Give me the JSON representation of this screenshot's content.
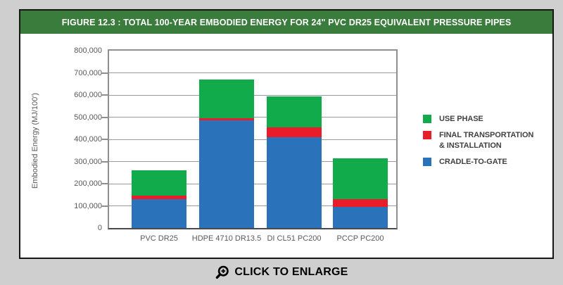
{
  "figure": {
    "title": "FIGURE 12.3 : TOTAL 100-YEAR EMBODIED ENERGY FOR 24\" PVC DR25 EQUIVALENT PRESSURE PIPES"
  },
  "chart_data": {
    "type": "bar",
    "stacked": true,
    "title": "FIGURE 12.3 : TOTAL 100-YEAR EMBODIED ENERGY FOR 24\" PVC DR25 EQUIVALENT PRESSURE PIPES",
    "xlabel": "",
    "ylabel": "Embodied Energy (MJ/100')",
    "ylim": [
      0,
      800000
    ],
    "ytick_step": 100000,
    "ytick_labels": [
      "0",
      "100,000",
      "200,000",
      "300,000",
      "400,000",
      "500,000",
      "600,000",
      "700,000",
      "800,000"
    ],
    "grid": "horizontal",
    "legend_position": "right",
    "categories": [
      "PVC DR25",
      "HDPE 4710 DR13.5",
      "DI CL51 PC200",
      "PCCP PC200"
    ],
    "series": [
      {
        "name": "CRADLE-TO-GATE",
        "color": "#2a72ba",
        "values": [
          130000,
          485000,
          410000,
          95000
        ]
      },
      {
        "name": "FINAL TRANSPORTATION & INSTALLATION",
        "color": "#e91c29",
        "values": [
          15000,
          10000,
          45000,
          35000
        ]
      },
      {
        "name": "USE PHASE",
        "color": "#11ab4b",
        "values": [
          115000,
          175000,
          140000,
          185000
        ]
      }
    ],
    "totals": [
      260000,
      670000,
      595000,
      315000
    ]
  },
  "legend": {
    "items": [
      {
        "id": "use-phase",
        "color": "#11ab4b",
        "lines": [
          "USE PHASE"
        ]
      },
      {
        "id": "final-transportation-installation",
        "color": "#e91c29",
        "lines": [
          "FINAL TRANSPORTATION",
          "& INSTALLATION"
        ]
      },
      {
        "id": "cradle-to-gate",
        "color": "#2a72ba",
        "lines": [
          "CRADLE-TO-GATE"
        ]
      }
    ]
  },
  "footer": {
    "enlarge_label": "CLICK TO ENLARGE"
  },
  "colors": {
    "page_background": "#cfcfcf",
    "header_green": "#3a7c3b",
    "use_phase_green": "#11ab4b",
    "transport_red": "#e91c29",
    "cradle_blue": "#2a72ba",
    "axis_text_gray": "#58595b"
  }
}
